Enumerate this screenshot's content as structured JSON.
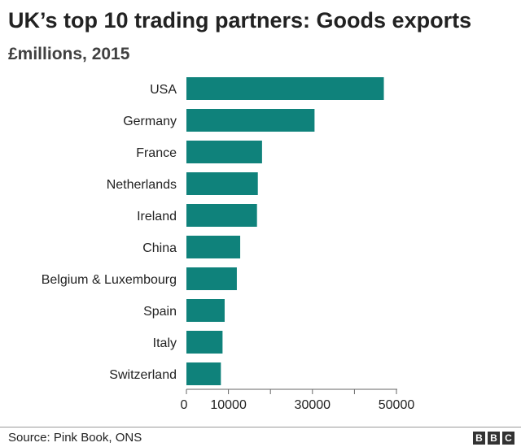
{
  "chart_data": {
    "type": "bar",
    "orientation": "horizontal",
    "title": "UK’s top 10 trading partners: Goods exports",
    "subtitle": "£millions, 2015",
    "categories": [
      "USA",
      "Germany",
      "France",
      "Netherlands",
      "Ireland",
      "China",
      "Belgium & Luxembourg",
      "Spain",
      "Italy",
      "Switzerland"
    ],
    "values": [
      47000,
      30500,
      18000,
      17000,
      16800,
      12800,
      12000,
      9100,
      8600,
      8200
    ],
    "xlim": [
      0,
      50000
    ],
    "x_ticks": [
      0,
      10000,
      30000,
      50000
    ],
    "x_minor_ticks": [
      20000,
      40000
    ],
    "bar_color": "#0f827b",
    "grid": false,
    "legend": "none"
  },
  "footer": {
    "source": "Source: Pink Book, ONS",
    "logo_letters": [
      "B",
      "B",
      "C"
    ]
  }
}
